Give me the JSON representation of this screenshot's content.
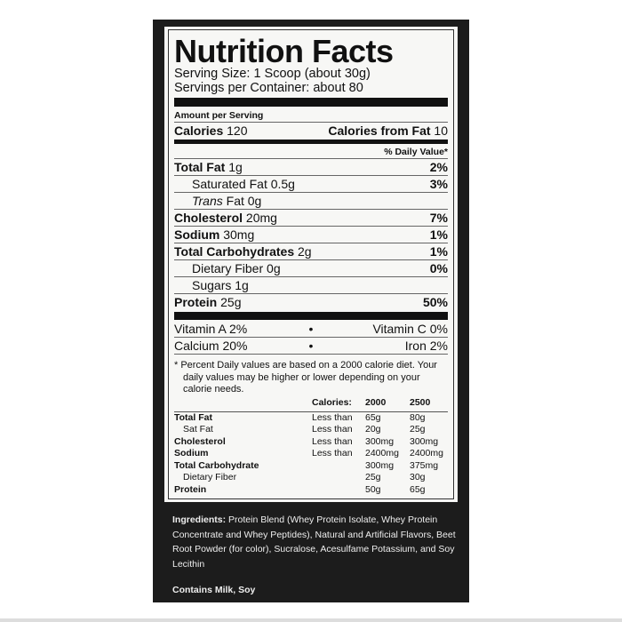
{
  "title": "Nutrition Facts",
  "serving_size": "Serving Size: 1 Scoop (about 30g)",
  "servings_per_container": "Servings per Container: about 80",
  "amount_per_serving": "Amount per Serving",
  "calories": {
    "label": "Calories",
    "value": "120",
    "fat_label": "Calories from Fat",
    "fat_value": "10"
  },
  "daily_value_header": "% Daily Value*",
  "nutrients": [
    {
      "name": "Total Fat",
      "amount": "1g",
      "dv": "2%",
      "bold": true
    },
    {
      "name": "Saturated Fat",
      "amount": "0.5g",
      "dv": "3%",
      "bold": false
    },
    {
      "name": "Trans",
      "name_rest": "Fat",
      "amount": "0g",
      "dv": "",
      "bold": false
    },
    {
      "name": "Cholesterol",
      "amount": "20mg",
      "dv": "7%",
      "bold": true
    },
    {
      "name": "Sodium",
      "amount": "30mg",
      "dv": "1%",
      "bold": true
    },
    {
      "name": "Total Carbohydrates",
      "amount": "2g",
      "dv": "1%",
      "bold": true
    },
    {
      "name": "Dietary Fiber",
      "amount": "0g",
      "dv": "0%",
      "bold": false
    },
    {
      "name": "Sugars",
      "amount": "1g",
      "dv": "",
      "bold": false
    },
    {
      "name": "Protein",
      "amount": "25g",
      "dv": "50%",
      "bold": true
    }
  ],
  "vitamins": [
    {
      "left": "Vitamin A  2%",
      "right": "Vitamin C  0%"
    },
    {
      "left": "Calcium  20%",
      "right": "Iron  2%"
    }
  ],
  "bullet": "•",
  "footnote": "* Percent Daily values are based on a 2000 calorie diet. Your daily values may be higher or lower depending on your calorie needs.",
  "dv_table": {
    "header": [
      "",
      "Calories:",
      "2000",
      "2500"
    ],
    "rows": [
      [
        "Total Fat",
        "Less than",
        "65g",
        "80g"
      ],
      [
        "Sat Fat",
        "Less than",
        "20g",
        "25g"
      ],
      [
        "Cholesterol",
        "Less than",
        "300mg",
        "300mg"
      ],
      [
        "Sodium",
        "Less than",
        "2400mg",
        "2400mg"
      ],
      [
        "Total Carbohydrate",
        "",
        "300mg",
        "375mg"
      ],
      [
        "Dietary Fiber",
        "",
        "25g",
        "30g"
      ],
      [
        "Protein",
        "",
        "50g",
        "65g"
      ]
    ]
  },
  "ingredients": {
    "label": "Ingredients:",
    "text": "Protein Blend (Whey Protein Isolate, Whey Protein Concentrate and Whey Peptides), Natural and Artificial Flavors, Beet Root Powder (for color), Sucralose, Acesulfame Potassium, and Soy Lecithin"
  },
  "contains": "Contains Milk, Soy"
}
